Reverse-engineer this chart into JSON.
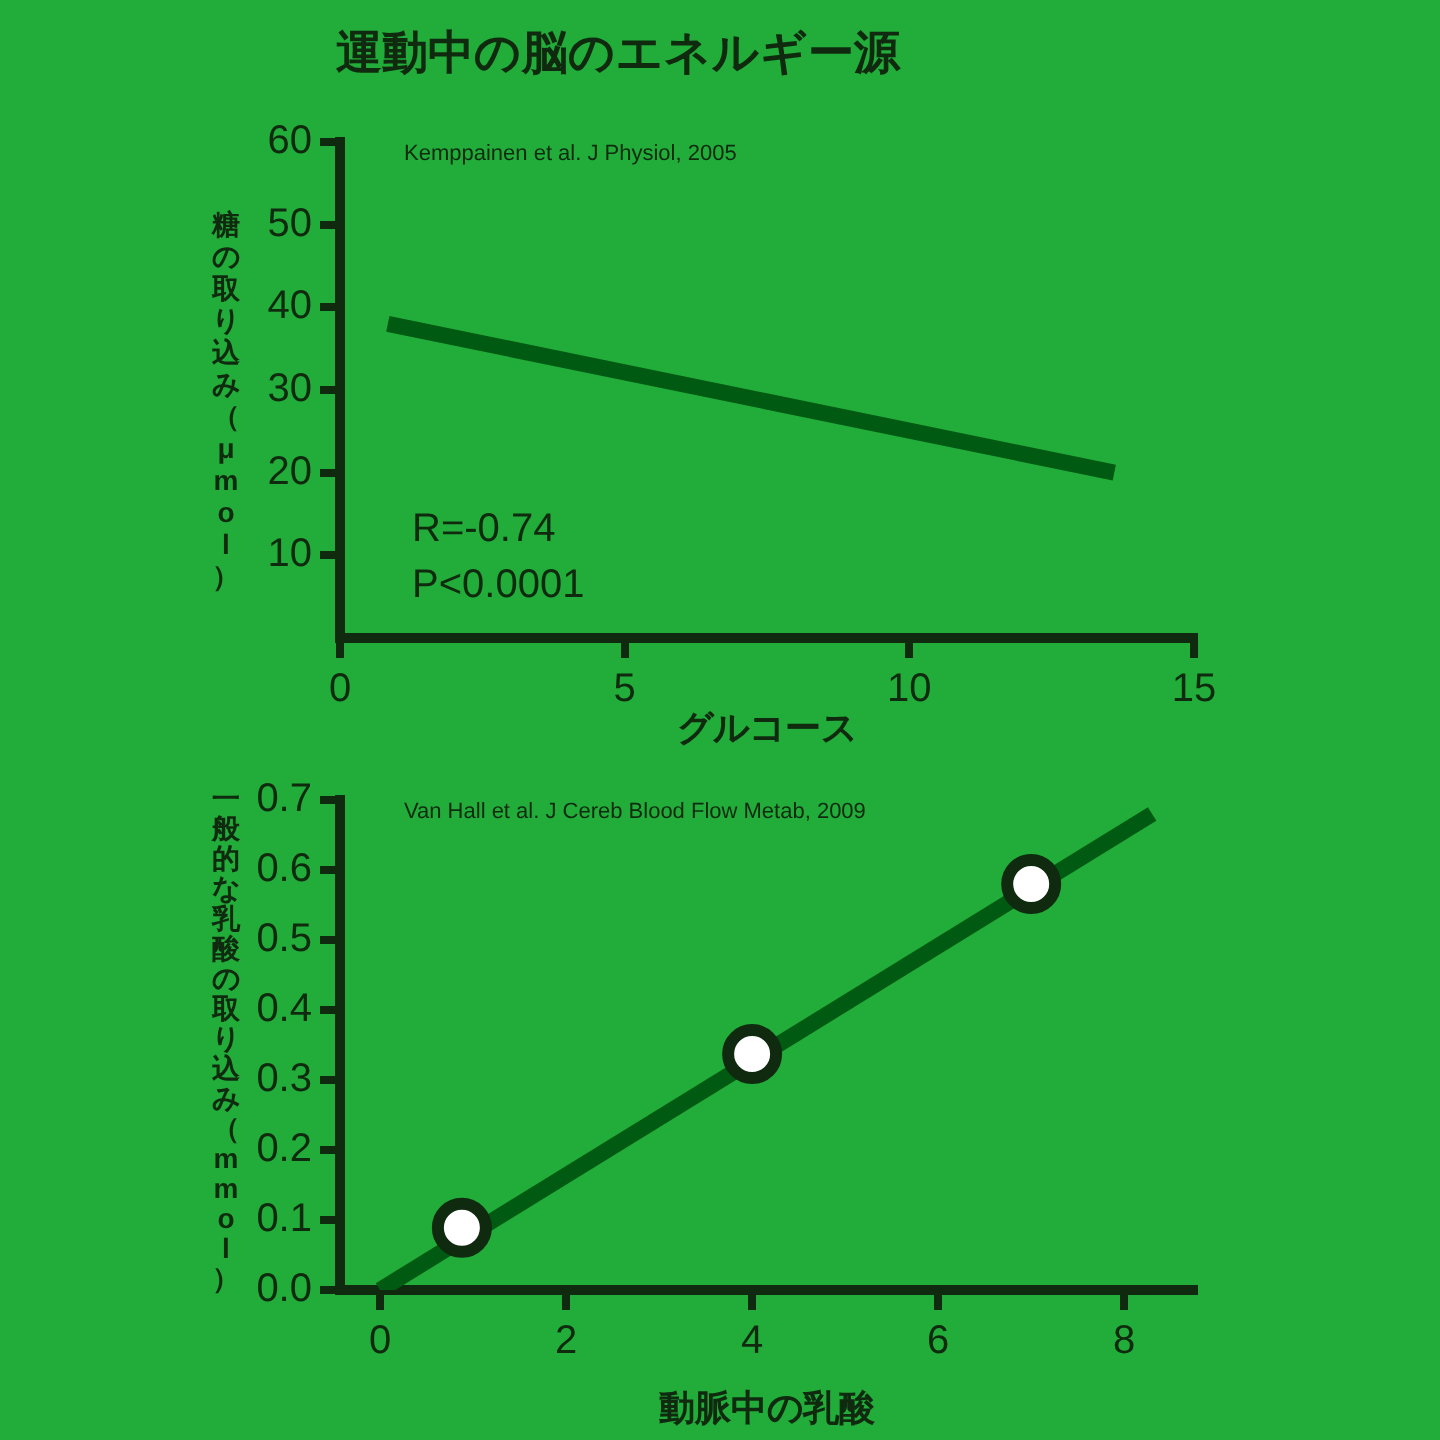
{
  "chart_data": [
    {
      "type": "line",
      "title": "運動中の脳のエネルギー源",
      "xlabel": "グルコース",
      "ylabel": "糖の取り込み（μmol）",
      "x": [
        0.84,
        13.6
      ],
      "values": [
        38,
        20
      ],
      "color": "#005a12",
      "xlim": [
        0,
        15
      ],
      "ylim": [
        0,
        60
      ],
      "xticks": [
        0,
        5,
        10,
        15
      ],
      "yticks": [
        10,
        20,
        30,
        40,
        50,
        60
      ],
      "annotations": [
        "Kemppainen et al. J Physiol, 2005",
        "R=-0.74",
        "P<0.0001"
      ]
    },
    {
      "type": "line",
      "xlabel": "動脈中の乳酸",
      "ylabel": "一般的な乳酸の取り込み（mmol）",
      "series": [
        {
          "type": "line",
          "color": "#005a12",
          "x": [
            0,
            8.3
          ],
          "values": [
            0,
            0.68
          ]
        },
        {
          "type": "scatter",
          "color": "#ffffff",
          "marker": "circle",
          "x": [
            0.88,
            4,
            7
          ],
          "values": [
            0.089,
            0.337,
            0.58
          ]
        }
      ],
      "xlim": [
        -0.43,
        8.75
      ],
      "ylim": [
        0,
        0.7
      ],
      "xticks": [
        0,
        2,
        4,
        6,
        8
      ],
      "yticks": [
        {
          "value": 0,
          "label": "0.0"
        },
        0.1,
        0.2,
        0.3,
        0.4,
        0.5,
        0.6,
        0.7
      ],
      "annotations": [
        "Van Hall et al. J Cereb Blood Flow Metab, 2009"
      ]
    }
  ]
}
